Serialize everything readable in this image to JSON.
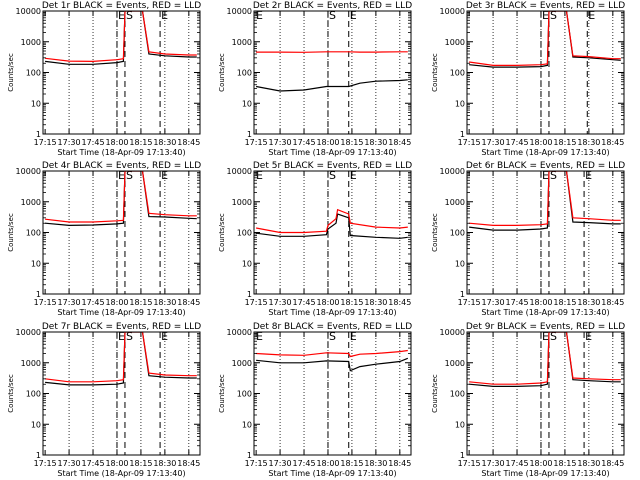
{
  "figure": {
    "background": "#ffffff",
    "foreground": "#000000",
    "accent": "#ff0000"
  },
  "chart_data": [
    {
      "type": "line",
      "title": "Det 1r BLACK = Events, RED = LLD",
      "xlabel": "Start Time (18-Apr-09 17:13:40)",
      "ylabel": "Counts/sec",
      "yscale": "log",
      "ylim": [
        1,
        10000
      ],
      "xticks": [
        "17:15",
        "17:30",
        "17:45",
        "18:00",
        "18:15",
        "18:30",
        "18:45"
      ],
      "yticks": [
        "1",
        "10",
        "100",
        "1000",
        "10000"
      ],
      "markers": [
        {
          "label": "E",
          "time": "18:00"
        },
        {
          "label": "S",
          "time": "18:05"
        },
        {
          "label": "E",
          "time": "18:27"
        }
      ],
      "series": [
        {
          "name": "Events",
          "color": "#000000",
          "x": [
            "17:15",
            "17:30",
            "17:45",
            "18:00",
            "18:04",
            "18:05",
            "18:10",
            "18:16",
            "18:20",
            "18:30",
            "18:45",
            "18:50"
          ],
          "y": [
            230,
            185,
            185,
            210,
            230,
            10000,
            10000,
            10000,
            400,
            350,
            320,
            320
          ]
        },
        {
          "name": "LLD",
          "color": "#ff0000",
          "x": [
            "17:15",
            "17:30",
            "17:45",
            "18:00",
            "18:04",
            "18:05",
            "18:10",
            "18:16",
            "18:20",
            "18:30",
            "18:45",
            "18:50"
          ],
          "y": [
            290,
            235,
            230,
            260,
            280,
            10000,
            10000,
            10000,
            470,
            400,
            370,
            370
          ]
        }
      ]
    },
    {
      "type": "line",
      "title": "Det 2r BLACK = Events, RED = LLD",
      "xlabel": "Start Time (18-Apr-09 17:13:40)",
      "ylabel": "Counts/sec",
      "yscale": "log",
      "ylim": [
        1,
        10000
      ],
      "xticks": [
        "17:15",
        "17:30",
        "17:45",
        "18:00",
        "18:15",
        "18:30",
        "18:45"
      ],
      "yticks": [
        "1",
        "10",
        "100",
        "1000",
        "10000"
      ],
      "markers": [
        {
          "label": "E",
          "time": "17:13"
        },
        {
          "label": "S",
          "time": "18:00"
        },
        {
          "label": "E",
          "time": "18:13"
        }
      ],
      "series": [
        {
          "name": "Events",
          "color": "#000000",
          "x": [
            "17:15",
            "17:30",
            "17:45",
            "17:59",
            "18:13",
            "18:20",
            "18:30",
            "18:45",
            "18:50"
          ],
          "y": [
            35,
            25,
            27,
            35,
            35,
            45,
            52,
            55,
            58
          ]
        },
        {
          "name": "LLD",
          "color": "#ff0000",
          "x": [
            "17:15",
            "17:30",
            "17:45",
            "17:59",
            "18:13",
            "18:20",
            "18:30",
            "18:45",
            "18:50"
          ],
          "y": [
            460,
            460,
            455,
            470,
            470,
            460,
            460,
            470,
            470
          ]
        }
      ]
    },
    {
      "type": "line",
      "title": "Det 3r BLACK = Events, RED = LLD",
      "xlabel": "Start Time (18-Apr-09 17:13:40)",
      "ylabel": "Counts/sec",
      "yscale": "log",
      "ylim": [
        1,
        10000
      ],
      "xticks": [
        "17:15",
        "17:30",
        "17:45",
        "18:00",
        "18:15",
        "18:30",
        "18:45"
      ],
      "yticks": [
        "1",
        "10",
        "100",
        "1000",
        "10000"
      ],
      "markers": [
        {
          "label": "E",
          "time": "18:00"
        },
        {
          "label": "S",
          "time": "18:05"
        },
        {
          "label": "E",
          "time": "18:29"
        }
      ],
      "series": [
        {
          "name": "Events",
          "color": "#000000",
          "x": [
            "17:15",
            "17:30",
            "17:45",
            "18:00",
            "18:04",
            "18:05",
            "18:10",
            "18:16",
            "18:20",
            "18:30",
            "18:45",
            "18:50"
          ],
          "y": [
            180,
            150,
            150,
            155,
            170,
            10000,
            10000,
            10000,
            320,
            300,
            260,
            250
          ]
        },
        {
          "name": "LLD",
          "color": "#ff0000",
          "x": [
            "17:15",
            "17:30",
            "17:45",
            "18:00",
            "18:04",
            "18:05",
            "18:10",
            "18:16",
            "18:20",
            "18:30",
            "18:45",
            "18:50"
          ],
          "y": [
            220,
            170,
            170,
            180,
            190,
            10000,
            10000,
            10000,
            350,
            330,
            280,
            280
          ]
        }
      ]
    },
    {
      "type": "line",
      "title": "Det 4r BLACK = Events, RED = LLD",
      "xlabel": "Start Time (18-Apr-09 17:13:40)",
      "ylabel": "Counts/sec",
      "yscale": "log",
      "ylim": [
        1,
        10000
      ],
      "xticks": [
        "17:15",
        "17:30",
        "17:45",
        "18:00",
        "18:15",
        "18:30",
        "18:45"
      ],
      "yticks": [
        "1",
        "10",
        "100",
        "1000",
        "10000"
      ],
      "markers": [
        {
          "label": "E",
          "time": "18:00"
        },
        {
          "label": "S",
          "time": "18:05"
        },
        {
          "label": "E",
          "time": "18:27"
        }
      ],
      "series": [
        {
          "name": "Events",
          "color": "#000000",
          "x": [
            "17:15",
            "17:30",
            "17:45",
            "18:00",
            "18:04",
            "18:05",
            "18:10",
            "18:16",
            "18:20",
            "18:30",
            "18:45",
            "18:50"
          ],
          "y": [
            200,
            170,
            175,
            190,
            200,
            10000,
            10000,
            10000,
            330,
            320,
            290,
            280
          ]
        },
        {
          "name": "LLD",
          "color": "#ff0000",
          "x": [
            "17:15",
            "17:30",
            "17:45",
            "18:00",
            "18:04",
            "18:05",
            "18:10",
            "18:16",
            "18:20",
            "18:30",
            "18:45",
            "18:50"
          ],
          "y": [
            270,
            220,
            220,
            240,
            250,
            10000,
            10000,
            10000,
            420,
            380,
            350,
            350
          ]
        }
      ]
    },
    {
      "type": "line",
      "title": "Det 5r BLACK = Events, RED = LLD",
      "xlabel": "Start Time (18-Apr-09 17:13:40)",
      "ylabel": "Counts/sec",
      "yscale": "log",
      "ylim": [
        1,
        10000
      ],
      "xticks": [
        "17:15",
        "17:30",
        "17:45",
        "18:00",
        "18:15",
        "18:30",
        "18:45"
      ],
      "yticks": [
        "1",
        "10",
        "100",
        "1000",
        "10000"
      ],
      "markers": [
        {
          "label": "E",
          "time": "17:13"
        },
        {
          "label": "S",
          "time": "18:00"
        },
        {
          "label": "E",
          "time": "18:13"
        }
      ],
      "series": [
        {
          "name": "Events",
          "color": "#000000",
          "x": [
            "17:15",
            "17:30",
            "17:45",
            "17:59",
            "18:00",
            "18:05",
            "18:06",
            "18:13",
            "18:14",
            "18:30",
            "18:45",
            "18:50"
          ],
          "y": [
            95,
            75,
            75,
            85,
            130,
            200,
            400,
            300,
            80,
            70,
            65,
            70
          ]
        },
        {
          "name": "LLD",
          "color": "#ff0000",
          "x": [
            "17:15",
            "17:30",
            "17:45",
            "17:59",
            "18:00",
            "18:05",
            "18:06",
            "18:13",
            "18:14",
            "18:30",
            "18:45",
            "18:50"
          ],
          "y": [
            140,
            100,
            100,
            110,
            170,
            280,
            550,
            400,
            200,
            150,
            140,
            150
          ]
        }
      ]
    },
    {
      "type": "line",
      "title": "Det 6r BLACK = Events, RED = LLD",
      "xlabel": "Start Time (18-Apr-09 17:13:40)",
      "ylabel": "Counts/sec",
      "yscale": "log",
      "ylim": [
        1,
        10000
      ],
      "xticks": [
        "17:15",
        "17:30",
        "17:45",
        "18:00",
        "18:15",
        "18:30",
        "18:45"
      ],
      "yticks": [
        "1",
        "10",
        "100",
        "1000",
        "10000"
      ],
      "markers": [
        {
          "label": "E",
          "time": "18:00"
        },
        {
          "label": "S",
          "time": "18:05"
        },
        {
          "label": "E",
          "time": "18:27"
        }
      ],
      "series": [
        {
          "name": "Events",
          "color": "#000000",
          "x": [
            "17:15",
            "17:30",
            "17:45",
            "18:00",
            "18:04",
            "18:05",
            "18:10",
            "18:16",
            "18:20",
            "18:30",
            "18:45",
            "18:50"
          ],
          "y": [
            150,
            120,
            120,
            130,
            140,
            10000,
            10000,
            10000,
            220,
            210,
            190,
            190
          ]
        },
        {
          "name": "LLD",
          "color": "#ff0000",
          "x": [
            "17:15",
            "17:30",
            "17:45",
            "18:00",
            "18:04",
            "18:05",
            "18:10",
            "18:16",
            "18:20",
            "18:30",
            "18:45",
            "18:50"
          ],
          "y": [
            200,
            170,
            170,
            180,
            190,
            10000,
            10000,
            10000,
            300,
            280,
            250,
            250
          ]
        }
      ]
    },
    {
      "type": "line",
      "title": "Det 7r BLACK = Events, RED = LLD",
      "xlabel": "Start Time (18-Apr-09 17:13:40)",
      "ylabel": "Counts/sec",
      "yscale": "log",
      "ylim": [
        1,
        10000
      ],
      "xticks": [
        "17:15",
        "17:30",
        "17:45",
        "18:00",
        "18:15",
        "18:30",
        "18:45"
      ],
      "yticks": [
        "1",
        "10",
        "100",
        "1000",
        "10000"
      ],
      "markers": [
        {
          "label": "E",
          "time": "18:00"
        },
        {
          "label": "S",
          "time": "18:05"
        },
        {
          "label": "E",
          "time": "18:27"
        }
      ],
      "series": [
        {
          "name": "Events",
          "color": "#000000",
          "x": [
            "17:15",
            "17:30",
            "17:45",
            "18:00",
            "18:04",
            "18:05",
            "18:10",
            "18:16",
            "18:20",
            "18:30",
            "18:45",
            "18:50"
          ],
          "y": [
            230,
            190,
            190,
            200,
            220,
            10000,
            10000,
            10000,
            380,
            340,
            320,
            320
          ]
        },
        {
          "name": "LLD",
          "color": "#ff0000",
          "x": [
            "17:15",
            "17:30",
            "17:45",
            "18:00",
            "18:04",
            "18:05",
            "18:10",
            "18:16",
            "18:20",
            "18:30",
            "18:45",
            "18:50"
          ],
          "y": [
            300,
            240,
            240,
            260,
            280,
            10000,
            10000,
            10000,
            460,
            400,
            380,
            380
          ]
        }
      ]
    },
    {
      "type": "line",
      "title": "Det 8r BLACK = Events, RED = LLD",
      "xlabel": "Start Time (18-Apr-09 17:13:40)",
      "ylabel": "Counts/sec",
      "yscale": "log",
      "ylim": [
        1,
        10000
      ],
      "xticks": [
        "17:15",
        "17:30",
        "17:45",
        "18:00",
        "18:15",
        "18:30",
        "18:45"
      ],
      "yticks": [
        "1",
        "10",
        "100",
        "1000",
        "10000"
      ],
      "markers": [
        {
          "label": "E",
          "time": "17:13"
        },
        {
          "label": "S",
          "time": "18:00"
        },
        {
          "label": "E",
          "time": "18:13"
        }
      ],
      "series": [
        {
          "name": "Events",
          "color": "#000000",
          "x": [
            "17:15",
            "17:30",
            "17:45",
            "17:59",
            "18:13",
            "18:14",
            "18:20",
            "18:30",
            "18:45",
            "18:50"
          ],
          "y": [
            1200,
            1000,
            1000,
            1150,
            1100,
            550,
            750,
            900,
            1100,
            1400
          ]
        },
        {
          "name": "LLD",
          "color": "#ff0000",
          "x": [
            "17:15",
            "17:30",
            "17:45",
            "17:59",
            "18:13",
            "18:14",
            "18:20",
            "18:30",
            "18:45",
            "18:50"
          ],
          "y": [
            2000,
            1800,
            1750,
            2100,
            2000,
            1600,
            1900,
            2000,
            2300,
            2500
          ]
        }
      ]
    },
    {
      "type": "line",
      "title": "Det 9r BLACK = Events, RED = LLD",
      "xlabel": "Start Time (18-Apr-09 17:13:40)",
      "ylabel": "Counts/sec",
      "yscale": "log",
      "ylim": [
        1,
        10000
      ],
      "xticks": [
        "17:15",
        "17:30",
        "17:45",
        "18:00",
        "18:15",
        "18:30",
        "18:45"
      ],
      "yticks": [
        "1",
        "10",
        "100",
        "1000",
        "10000"
      ],
      "markers": [
        {
          "label": "E",
          "time": "18:00"
        },
        {
          "label": "S",
          "time": "18:05"
        },
        {
          "label": "E",
          "time": "18:27"
        }
      ],
      "series": [
        {
          "name": "Events",
          "color": "#000000",
          "x": [
            "17:15",
            "17:30",
            "17:45",
            "18:00",
            "18:04",
            "18:05",
            "18:10",
            "18:16",
            "18:20",
            "18:30",
            "18:45",
            "18:50"
          ],
          "y": [
            200,
            170,
            170,
            180,
            200,
            10000,
            10000,
            10000,
            280,
            260,
            240,
            240
          ]
        },
        {
          "name": "LLD",
          "color": "#ff0000",
          "x": [
            "17:15",
            "17:30",
            "17:45",
            "18:00",
            "18:04",
            "18:05",
            "18:10",
            "18:16",
            "18:20",
            "18:30",
            "18:45",
            "18:50"
          ],
          "y": [
            240,
            200,
            200,
            220,
            240,
            10000,
            10000,
            10000,
            320,
            300,
            280,
            280
          ]
        }
      ]
    }
  ]
}
